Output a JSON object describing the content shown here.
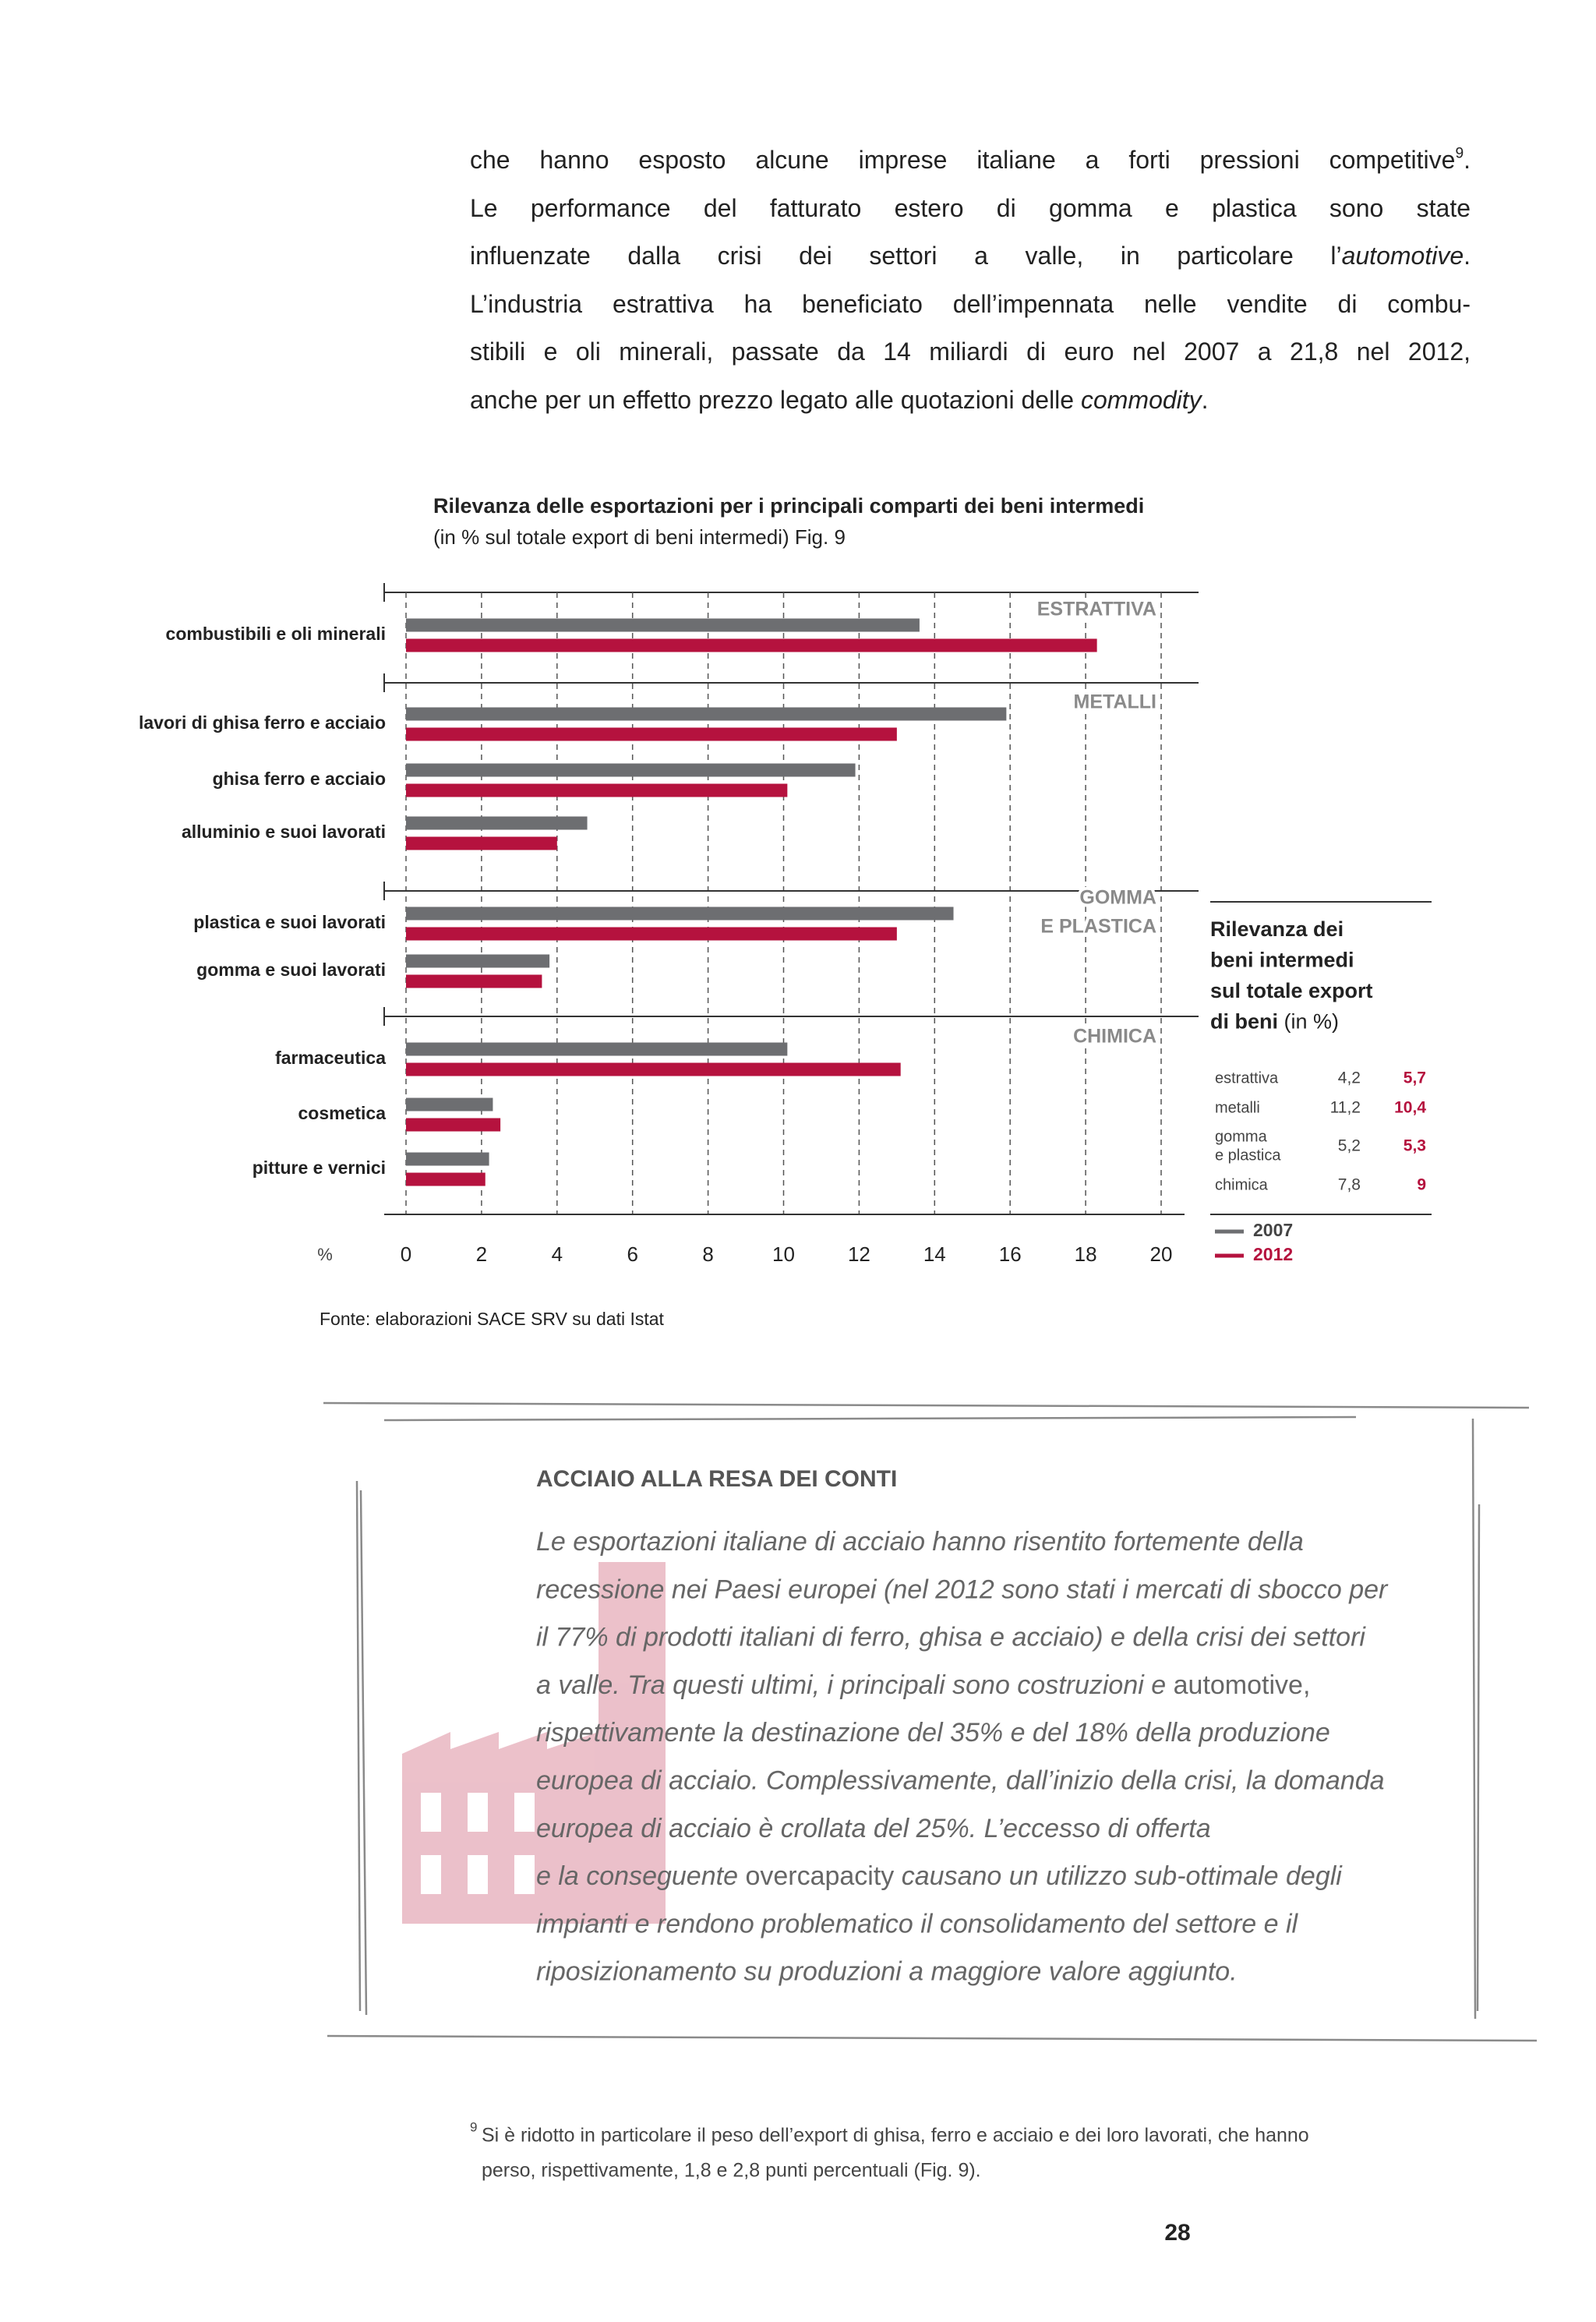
{
  "body": {
    "lines": [
      [
        {
          "text": "che hanno esposto alcune imprese italiane a forti pressioni competitive"
        },
        {
          "text": "9",
          "style": "superscript"
        },
        {
          "text": "."
        }
      ],
      [
        {
          "text": "Le performance del fatturato estero di gomma e plastica sono state"
        }
      ],
      [
        {
          "text": "influenzate dalla crisi dei settori a valle, in particolare l’"
        },
        {
          "text": "automotive",
          "style": "italic"
        },
        {
          "text": "."
        }
      ],
      [
        {
          "text": "L’industria estrattiva ha beneficiato dell’impennata nelle vendite di combu-"
        }
      ],
      [
        {
          "text": "stibili e oli minerali, passate da 14 miliardi di euro nel 2007 a 21,8 nel 2012,"
        }
      ],
      [
        {
          "text": "anche per un effetto prezzo legato alle quotazioni delle "
        },
        {
          "text": "commodity",
          "style": "italic"
        },
        {
          "text": "."
        }
      ]
    ]
  },
  "chart_data": {
    "type": "bar",
    "orientation": "horizontal",
    "title": "Rilevanza delle esportazioni per i principali comparti dei beni intermedi",
    "subtitle": "(in % sul totale export di beni intermedi) Fig. 9",
    "groups": [
      {
        "label": [
          "ESTRATTIVA"
        ],
        "categories": [
          "combustibili e oli minerali"
        ]
      },
      {
        "label": [
          "METALLI"
        ],
        "categories": [
          "lavori di ghisa ferro e acciaio",
          "ghisa ferro e acciaio",
          "alluminio e suoi lavorati"
        ]
      },
      {
        "label": [
          "GOMMA",
          "E PLASTICA"
        ],
        "categories": [
          "plastica e suoi lavorati",
          "gomma e suoi lavorati"
        ]
      },
      {
        "label": [
          "CHIMICA"
        ],
        "categories": [
          "farmaceutica",
          "cosmetica",
          "pitture e vernici"
        ]
      }
    ],
    "series": [
      {
        "name": "2007",
        "color": "#6d6e71",
        "values": [
          13.6,
          15.9,
          11.9,
          4.8,
          14.5,
          3.8,
          10.1,
          2.3,
          2.2
        ]
      },
      {
        "name": "2012",
        "color": "#b5123e",
        "values": [
          18.3,
          13.0,
          10.1,
          4.0,
          13.0,
          3.6,
          13.1,
          2.5,
          2.1
        ]
      }
    ],
    "xlabel": "%",
    "xlim": [
      0,
      20
    ],
    "xticks": [
      0,
      2,
      4,
      6,
      8,
      10,
      12,
      14,
      16,
      18,
      20
    ],
    "grid": true,
    "source": "Fonte: elaborazioni SACE SRV su dati Istat"
  },
  "side_table": {
    "title": [
      "Rilevanza dei",
      "beni intermedi",
      "sul totale export",
      "di beni"
    ],
    "title_note": "(in %)",
    "rows": [
      {
        "label": [
          "estrattiva"
        ],
        "values": [
          "4,2",
          "5,7"
        ]
      },
      {
        "label": [
          "metalli"
        ],
        "values": [
          "11,2",
          "10,4"
        ]
      },
      {
        "label": [
          "gomma",
          "e plastica"
        ],
        "values": [
          "5,2",
          "5,3"
        ]
      },
      {
        "label": [
          "chimica"
        ],
        "values": [
          "7,8",
          "9"
        ]
      }
    ]
  },
  "box": {
    "title": "ACCIAIO ALLA RESA DEI CONTI",
    "lines": [
      [
        {
          "text": "Le esportazioni italiane di acciaio hanno risentito fortemente della"
        }
      ],
      [
        {
          "text": "recessione nei Paesi europei (nel 2012 sono stati i mercati di sbocco per"
        }
      ],
      [
        {
          "text": "il 77% di prodotti italiani di ferro, ghisa e acciaio) e della crisi dei settori"
        }
      ],
      [
        {
          "text": "a valle. Tra questi ultimi, i principali sono costruzioni e "
        },
        {
          "text": "automotive,",
          "style": "normal"
        }
      ],
      [
        {
          "text": "rispettivamente la destinazione del 35% e del 18% della produzione"
        }
      ],
      [
        {
          "text": "europea di acciaio. Complessivamente, dall’inizio della crisi, la domanda"
        }
      ],
      [
        {
          "text": "europea di acciaio è crollata del 25%. L’eccesso di offerta"
        }
      ],
      [
        {
          "text": "e la conseguente "
        },
        {
          "text": "overcapacity",
          "style": "normal"
        },
        {
          "text": " causano un utilizzo sub-ottimale degli"
        }
      ],
      [
        {
          "text": "impianti e rendono problematico il consolidamento del settore e il"
        }
      ],
      [
        {
          "text": "riposizionamento su produzioni a maggiore valore aggiunto."
        }
      ]
    ]
  },
  "footnote": {
    "number": "9",
    "lines": [
      "Si è ridotto in particolare il peso dell’export di ghisa, ferro e acciaio e dei loro lavorati, che hanno",
      "perso, rispettivamente, 1,8 e 2,8 punti percentuali (Fig. 9)."
    ]
  },
  "page_number": "28"
}
